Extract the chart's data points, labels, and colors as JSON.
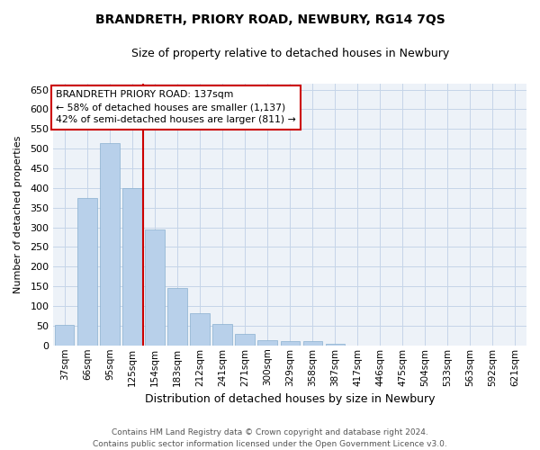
{
  "title": "BRANDRETH, PRIORY ROAD, NEWBURY, RG14 7QS",
  "subtitle": "Size of property relative to detached houses in Newbury",
  "xlabel": "Distribution of detached houses by size in Newbury",
  "ylabel": "Number of detached properties",
  "categories": [
    "37sqm",
    "66sqm",
    "95sqm",
    "125sqm",
    "154sqm",
    "183sqm",
    "212sqm",
    "241sqm",
    "271sqm",
    "300sqm",
    "329sqm",
    "358sqm",
    "387sqm",
    "417sqm",
    "446sqm",
    "475sqm",
    "504sqm",
    "533sqm",
    "563sqm",
    "592sqm",
    "621sqm"
  ],
  "values": [
    52,
    375,
    515,
    400,
    295,
    145,
    82,
    55,
    30,
    13,
    12,
    10,
    5,
    0,
    0,
    0,
    0,
    0,
    0,
    0,
    0
  ],
  "bar_color": "#b8d0ea",
  "bar_edge_color": "#8ab0d0",
  "grid_color": "#c5d5e8",
  "background_color": "#edf2f8",
  "vline_color": "#cc0000",
  "vline_x_idx": 3,
  "annotation_text": "BRANDRETH PRIORY ROAD: 137sqm\n← 58% of detached houses are smaller (1,137)\n42% of semi-detached houses are larger (811) →",
  "annotation_box_edge": "#cc0000",
  "ylim": [
    0,
    665
  ],
  "yticks": [
    0,
    50,
    100,
    150,
    200,
    250,
    300,
    350,
    400,
    450,
    500,
    550,
    600,
    650
  ],
  "footer_line1": "Contains HM Land Registry data © Crown copyright and database right 2024.",
  "footer_line2": "Contains public sector information licensed under the Open Government Licence v3.0."
}
